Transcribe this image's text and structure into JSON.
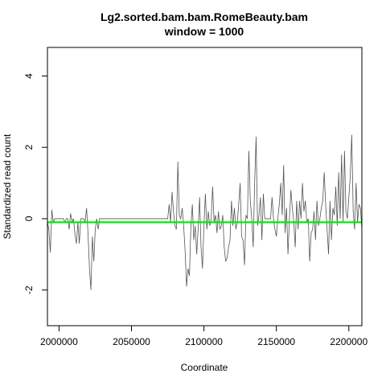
{
  "chart_data": {
    "type": "line",
    "title": "Lg2.sorted.bam.bam.RomeBeauty.bam",
    "subtitle": "window = 1000",
    "xlabel": "Coordinate",
    "ylabel": "Standardized read count",
    "xlim": [
      1992000,
      2209000
    ],
    "ylim": [
      -3,
      4.8
    ],
    "xticks": [
      2000000,
      2050000,
      2100000,
      2150000,
      2200000
    ],
    "yticks": [
      -2,
      0,
      2,
      4
    ],
    "grid": false,
    "reference_line": {
      "y": -0.1,
      "color": "#00ee00"
    },
    "series": [
      {
        "color": "#555555",
        "points": [
          [
            1992000,
            -0.1
          ],
          [
            1993000,
            -0.3
          ],
          [
            1994000,
            -0.95
          ],
          [
            1995000,
            0.25
          ],
          [
            1996000,
            -0.1
          ],
          [
            1997000,
            0.0
          ],
          [
            1998000,
            0.0
          ],
          [
            1999000,
            0.0
          ],
          [
            2000000,
            0.0
          ],
          [
            2001000,
            0.0
          ],
          [
            2002000,
            0.0
          ],
          [
            2003000,
            0.0
          ],
          [
            2004000,
            -0.1
          ],
          [
            2005000,
            0.0
          ],
          [
            2006000,
            0.0
          ],
          [
            2007000,
            -0.3
          ],
          [
            2008000,
            0.15
          ],
          [
            2009000,
            -0.1
          ],
          [
            2010000,
            0.0
          ],
          [
            2011000,
            -0.45
          ],
          [
            2012000,
            -0.7
          ],
          [
            2013000,
            -0.1
          ],
          [
            2014000,
            -0.7
          ],
          [
            2015000,
            0.0
          ],
          [
            2016000,
            0.0
          ],
          [
            2017000,
            0.0
          ],
          [
            2018000,
            -0.1
          ],
          [
            2019000,
            0.3
          ],
          [
            2020000,
            -0.4
          ],
          [
            2021000,
            -1.4
          ],
          [
            2022000,
            -2.0
          ],
          [
            2023000,
            -0.5
          ],
          [
            2024000,
            -1.2
          ],
          [
            2025000,
            -0.3
          ],
          [
            2026000,
            0.0
          ],
          [
            2027000,
            -0.3
          ],
          [
            2028000,
            0.0
          ],
          [
            2040000,
            0.0
          ],
          [
            2050000,
            0.0
          ],
          [
            2060000,
            0.0
          ],
          [
            2070000,
            0.0
          ],
          [
            2075000,
            0.0
          ],
          [
            2076000,
            0.4
          ],
          [
            2077000,
            -0.1
          ],
          [
            2078000,
            0.75
          ],
          [
            2079000,
            0.2
          ],
          [
            2080000,
            -0.2
          ],
          [
            2081000,
            -0.3
          ],
          [
            2082000,
            1.6
          ],
          [
            2083000,
            0.1
          ],
          [
            2084000,
            0.0
          ],
          [
            2085000,
            0.3
          ],
          [
            2086000,
            -0.2
          ],
          [
            2087000,
            -0.9
          ],
          [
            2088000,
            -1.9
          ],
          [
            2089000,
            -1.4
          ],
          [
            2090000,
            -1.6
          ],
          [
            2091000,
            -0.2
          ],
          [
            2092000,
            0.4
          ],
          [
            2093000,
            -0.6
          ],
          [
            2094000,
            -0.2
          ],
          [
            2095000,
            -1.0
          ],
          [
            2096000,
            -0.3
          ],
          [
            2097000,
            0.6
          ],
          [
            2098000,
            -0.8
          ],
          [
            2099000,
            -1.4
          ],
          [
            2100000,
            -0.2
          ],
          [
            2101000,
            0.7
          ],
          [
            2102000,
            -0.3
          ],
          [
            2103000,
            0.2
          ],
          [
            2104000,
            -0.2
          ],
          [
            2105000,
            0.0
          ],
          [
            2106000,
            0.9
          ],
          [
            2107000,
            -0.1
          ],
          [
            2108000,
            0.1
          ],
          [
            2109000,
            -0.4
          ],
          [
            2110000,
            0.2
          ],
          [
            2111000,
            -0.3
          ],
          [
            2112000,
            -0.2
          ],
          [
            2113000,
            0.1
          ],
          [
            2114000,
            -0.8
          ],
          [
            2115000,
            -1.2
          ],
          [
            2116000,
            -1.1
          ],
          [
            2117000,
            -0.8
          ],
          [
            2118000,
            -0.6
          ],
          [
            2119000,
            0.5
          ],
          [
            2120000,
            -0.2
          ],
          [
            2121000,
            0.3
          ],
          [
            2122000,
            -0.3
          ],
          [
            2123000,
            -0.1
          ],
          [
            2124000,
            0.4
          ],
          [
            2125000,
            1.0
          ],
          [
            2126000,
            -0.5
          ],
          [
            2127000,
            -0.6
          ],
          [
            2128000,
            -1.3
          ],
          [
            2129000,
            0.1
          ],
          [
            2130000,
            0.0
          ],
          [
            2131000,
            1.9
          ],
          [
            2132000,
            0.5
          ],
          [
            2133000,
            0.0
          ],
          [
            2134000,
            -0.8
          ],
          [
            2135000,
            1.0
          ],
          [
            2136000,
            2.3
          ],
          [
            2137000,
            -0.2
          ],
          [
            2138000,
            0.1
          ],
          [
            2139000,
            0.6
          ],
          [
            2140000,
            -0.6
          ],
          [
            2141000,
            0.7
          ],
          [
            2142000,
            0.0
          ],
          [
            2143000,
            0.0
          ],
          [
            2144000,
            0.0
          ],
          [
            2145000,
            0.0
          ],
          [
            2146000,
            0.0
          ],
          [
            2147000,
            0.6
          ],
          [
            2148000,
            0.0
          ],
          [
            2149000,
            -0.3
          ],
          [
            2150000,
            -0.5
          ],
          [
            2151000,
            0.0
          ],
          [
            2152000,
            0.4
          ],
          [
            2153000,
            1.0
          ],
          [
            2154000,
            0.1
          ],
          [
            2155000,
            1.5
          ],
          [
            2156000,
            -0.4
          ],
          [
            2157000,
            0.3
          ],
          [
            2158000,
            -1.0
          ],
          [
            2159000,
            0.0
          ],
          [
            2160000,
            0.8
          ],
          [
            2161000,
            0.3
          ],
          [
            2162000,
            -0.1
          ],
          [
            2163000,
            -0.8
          ],
          [
            2164000,
            0.5
          ],
          [
            2165000,
            -0.3
          ],
          [
            2166000,
            0.5
          ],
          [
            2167000,
            0.0
          ],
          [
            2168000,
            1.0
          ],
          [
            2169000,
            0.2
          ],
          [
            2170000,
            0.5
          ],
          [
            2171000,
            -0.1
          ],
          [
            2172000,
            0.0
          ],
          [
            2173000,
            -1.2
          ],
          [
            2174000,
            -0.4
          ],
          [
            2175000,
            -0.3
          ],
          [
            2176000,
            0.2
          ],
          [
            2177000,
            -0.6
          ],
          [
            2178000,
            0.5
          ],
          [
            2179000,
            -0.2
          ],
          [
            2180000,
            0.0
          ],
          [
            2181000,
            0.3
          ],
          [
            2182000,
            0.5
          ],
          [
            2183000,
            1.3
          ],
          [
            2184000,
            0.4
          ],
          [
            2185000,
            -0.3
          ],
          [
            2186000,
            -1.0
          ],
          [
            2187000,
            0.5
          ],
          [
            2188000,
            -0.6
          ],
          [
            2189000,
            0.3
          ],
          [
            2190000,
            0.1
          ],
          [
            2191000,
            0.9
          ],
          [
            2192000,
            -0.2
          ],
          [
            2193000,
            1.3
          ],
          [
            2194000,
            0.0
          ],
          [
            2195000,
            1.8
          ],
          [
            2196000,
            -0.1
          ],
          [
            2197000,
            1.9
          ],
          [
            2198000,
            0.2
          ],
          [
            2199000,
            0.0
          ],
          [
            2200000,
            0.6
          ],
          [
            2201000,
            1.2
          ],
          [
            2202000,
            2.35
          ],
          [
            2203000,
            0.2
          ],
          [
            2204000,
            -0.3
          ],
          [
            2205000,
            1.0
          ],
          [
            2206000,
            -0.1
          ],
          [
            2207000,
            0.4
          ],
          [
            2208000,
            0.3
          ],
          [
            2209000,
            -0.3
          ]
        ]
      }
    ]
  }
}
